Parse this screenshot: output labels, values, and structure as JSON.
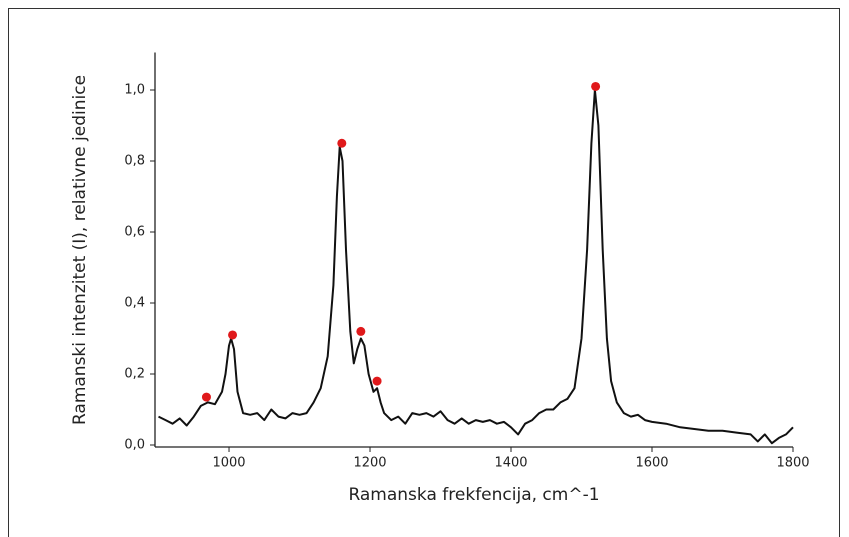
{
  "chart_data": {
    "type": "line",
    "x_label": "Ramanska frekfencija, cm^-1",
    "y_label": "Ramanski intenzitet (I), relativne jedinice",
    "xlim": [
      895,
      1800
    ],
    "ylim": [
      0,
      1.1
    ],
    "xticks": [
      1000,
      1200,
      1400,
      1600,
      1800
    ],
    "yticks": [
      {
        "value": 0,
        "label": "0,0"
      },
      {
        "value": 0.2,
        "label": "0,2"
      },
      {
        "value": 0.4,
        "label": "0,4"
      },
      {
        "value": 0.6,
        "label": "0,6"
      },
      {
        "value": 0.8,
        "label": "0,8"
      },
      {
        "value": 1.0,
        "label": "1,0"
      }
    ],
    "color": "#111111",
    "x": [
      900,
      910,
      920,
      930,
      940,
      950,
      960,
      970,
      980,
      990,
      995,
      1000,
      1003,
      1007,
      1012,
      1020,
      1030,
      1040,
      1050,
      1060,
      1070,
      1080,
      1090,
      1100,
      1110,
      1120,
      1130,
      1140,
      1148,
      1153,
      1157,
      1161,
      1166,
      1172,
      1177,
      1182,
      1187,
      1192,
      1198,
      1205,
      1210,
      1215,
      1220,
      1230,
      1240,
      1250,
      1260,
      1270,
      1280,
      1290,
      1300,
      1310,
      1320,
      1330,
      1340,
      1350,
      1360,
      1370,
      1380,
      1390,
      1400,
      1410,
      1420,
      1430,
      1440,
      1450,
      1460,
      1470,
      1480,
      1490,
      1500,
      1508,
      1514,
      1519,
      1524,
      1530,
      1536,
      1542,
      1550,
      1560,
      1570,
      1580,
      1590,
      1600,
      1620,
      1640,
      1660,
      1680,
      1700,
      1720,
      1740,
      1750,
      1760,
      1770,
      1780,
      1790,
      1800
    ],
    "values": [
      0.08,
      0.07,
      0.06,
      0.075,
      0.055,
      0.08,
      0.11,
      0.12,
      0.115,
      0.15,
      0.2,
      0.28,
      0.3,
      0.27,
      0.15,
      0.09,
      0.085,
      0.09,
      0.07,
      0.1,
      0.08,
      0.075,
      0.09,
      0.085,
      0.09,
      0.12,
      0.16,
      0.25,
      0.45,
      0.7,
      0.84,
      0.8,
      0.55,
      0.32,
      0.23,
      0.27,
      0.3,
      0.28,
      0.2,
      0.15,
      0.16,
      0.12,
      0.09,
      0.07,
      0.08,
      0.06,
      0.09,
      0.085,
      0.09,
      0.08,
      0.095,
      0.07,
      0.06,
      0.075,
      0.06,
      0.07,
      0.065,
      0.07,
      0.06,
      0.065,
      0.05,
      0.03,
      0.06,
      0.07,
      0.09,
      0.1,
      0.1,
      0.12,
      0.13,
      0.16,
      0.3,
      0.55,
      0.85,
      1.0,
      0.9,
      0.55,
      0.3,
      0.18,
      0.12,
      0.09,
      0.08,
      0.085,
      0.07,
      0.065,
      0.06,
      0.05,
      0.045,
      0.04,
      0.04,
      0.035,
      0.03,
      0.01,
      0.03,
      0.005,
      0.02,
      0.03,
      0.05
    ],
    "markers": {
      "color": "#e0191b",
      "x": [
        968,
        1005,
        1160,
        1187,
        1210,
        1520
      ],
      "values": [
        0.135,
        0.31,
        0.85,
        0.32,
        0.18,
        1.01
      ]
    }
  }
}
